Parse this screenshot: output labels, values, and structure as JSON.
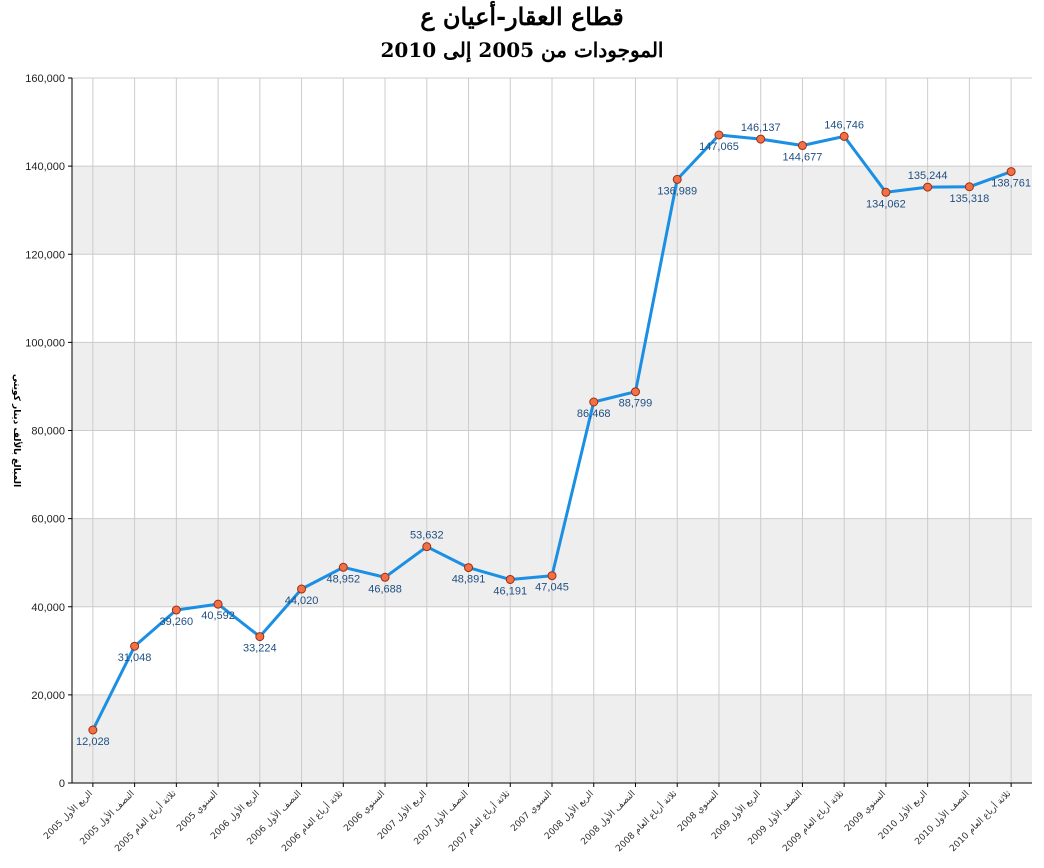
{
  "chart_data": {
    "type": "line",
    "title": "قطاع العقار-أعيان ع",
    "subtitle": "الموجودات من 2005 إلى 2010",
    "ylabel": "المبالغ بالألف دينار كويتي",
    "xlabel": "",
    "ylim": [
      0,
      160000
    ],
    "y_ticks": [
      0,
      20000,
      40000,
      60000,
      80000,
      100000,
      120000,
      140000,
      160000
    ],
    "y_tick_labels": [
      "0",
      "20,000",
      "40,000",
      "60,000",
      "80,000",
      "100,000",
      "120,000",
      "140,000",
      "160,000"
    ],
    "grid": true,
    "categories": [
      "الربع الأول 2005",
      "النصف الأول 2005",
      "ثلاثة أرباع العام 2005",
      "السنوي 2005",
      "الربع الأول 2006",
      "النصف الأول 2006",
      "ثلاثة أرباع العام 2006",
      "السنوي 2006",
      "الربع الأول 2007",
      "النصف الأول 2007",
      "ثلاثة أرباع العام 2007",
      "السنوي 2007",
      "الربع الأول 2008",
      "النصف الأول 2008",
      "ثلاثة أرباع العام 2008",
      "السنوي 2008",
      "الربع الأول 2009",
      "النصف الأول 2009",
      "ثلاثة أرباع العام 2009",
      "السنوي 2009",
      "الربع الأول 2010",
      "النصف الأول 2010",
      "ثلاثة أرباع العام 2010"
    ],
    "values": [
      12028,
      31048,
      39260,
      40592,
      33224,
      44020,
      48952,
      46688,
      53632,
      48891,
      46191,
      47045,
      86468,
      88799,
      136989,
      147065,
      146137,
      144677,
      146746,
      134062,
      135244,
      135318,
      138761
    ],
    "value_labels": [
      "12,028",
      "31,048",
      "39,260",
      "40,592",
      "33,224",
      "44,020",
      "48,952",
      "46,688",
      "53,632",
      "48,891",
      "46,191",
      "47,045",
      "86,468",
      "88,799",
      "136,989",
      "147,065",
      "146,137",
      "144,677",
      "146,746",
      "134,062",
      "135,244",
      "135,318",
      "138,761"
    ],
    "colors": {
      "line": "#1a8fe3",
      "marker_fill": "#f07048",
      "marker_stroke": "#9c2f10",
      "band": "#eeeeee",
      "grid": "#cccccc"
    }
  }
}
